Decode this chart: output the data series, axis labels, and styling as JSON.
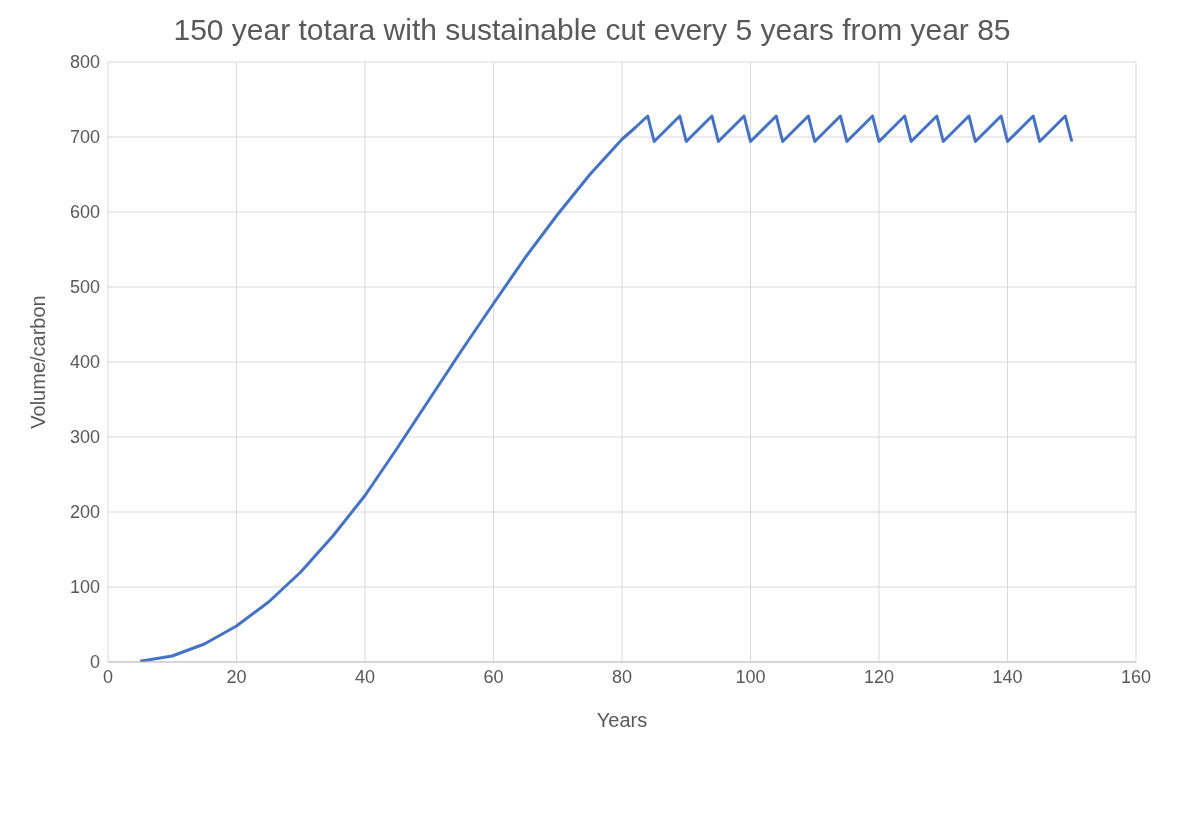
{
  "chart_data": {
    "type": "line",
    "title": "150 year totara with sustainable cut every 5 years from year 85",
    "xlabel": "Years",
    "ylabel": "Volume/carbon",
    "x": [
      5,
      10,
      15,
      20,
      25,
      30,
      35,
      40,
      45,
      50,
      55,
      60,
      65,
      70,
      75,
      80,
      82,
      84,
      85,
      89,
      90,
      94,
      95,
      99,
      100,
      104,
      105,
      109,
      110,
      114,
      115,
      119,
      120,
      124,
      125,
      129,
      130,
      134,
      135,
      139,
      140,
      144,
      145,
      149,
      150
    ],
    "series": [
      {
        "color": "#4472c4",
        "values": [
          1,
          8,
          24,
          48,
          80,
          120,
          168,
          222,
          285,
          350,
          415,
          478,
          540,
          597,
          650,
          697,
          712,
          728,
          694,
          728,
          694,
          728,
          694,
          728,
          694,
          728,
          694,
          728,
          694,
          728,
          694,
          728,
          694,
          728,
          694,
          728,
          694,
          728,
          694,
          728,
          694,
          728,
          694,
          728,
          694
        ]
      }
    ],
    "xlim": [
      0,
      160
    ],
    "xticks": [
      0,
      20,
      40,
      60,
      80,
      100,
      120,
      140,
      160
    ],
    "ylim": [
      0,
      800
    ],
    "yticks": [
      0,
      100,
      200,
      300,
      400,
      500,
      600,
      700,
      800
    ],
    "grid": true,
    "legend": false,
    "marker": "none",
    "line_style": "solid"
  }
}
